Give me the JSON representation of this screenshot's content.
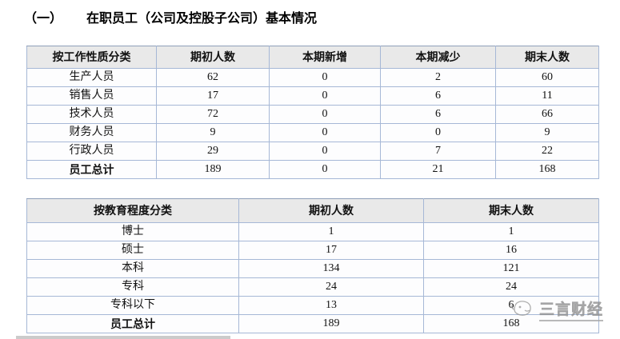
{
  "heading": {
    "number": "（一）",
    "title": "在职员工（公司及控股子公司）基本情况"
  },
  "job_table": {
    "headers": [
      "按工作性质分类",
      "期初人数",
      "本期新增",
      "本期减少",
      "期末人数"
    ],
    "rows": [
      {
        "label": "生产人员",
        "values": [
          "62",
          "0",
          "2",
          "60"
        ],
        "bold": false
      },
      {
        "label": "销售人员",
        "values": [
          "17",
          "0",
          "6",
          "11"
        ],
        "bold": false
      },
      {
        "label": "技术人员",
        "values": [
          "72",
          "0",
          "6",
          "66"
        ],
        "bold": false
      },
      {
        "label": "财务人员",
        "values": [
          "9",
          "0",
          "0",
          "9"
        ],
        "bold": false
      },
      {
        "label": "行政人员",
        "values": [
          "29",
          "0",
          "7",
          "22"
        ],
        "bold": false
      },
      {
        "label": "员工总计",
        "values": [
          "189",
          "0",
          "21",
          "168"
        ],
        "bold": true
      }
    ]
  },
  "education_table": {
    "headers": [
      "按教育程度分类",
      "期初人数",
      "期末人数"
    ],
    "rows": [
      {
        "label": "博士",
        "values": [
          "1",
          "1"
        ],
        "bold": false
      },
      {
        "label": "硕士",
        "values": [
          "17",
          "16"
        ],
        "bold": false
      },
      {
        "label": "本科",
        "values": [
          "134",
          "121"
        ],
        "bold": false
      },
      {
        "label": "专科",
        "values": [
          "24",
          "24"
        ],
        "bold": false
      },
      {
        "label": "专科以下",
        "values": [
          "13",
          "6"
        ],
        "bold": false
      },
      {
        "label": "员工总计",
        "values": [
          "189",
          "168"
        ],
        "bold": true
      }
    ]
  },
  "watermark": {
    "text": "三言财经",
    "logo": "sanyan-mascot-logo"
  },
  "colors": {
    "border_color": "#a6b8d6",
    "header_bg": "#e9e9e9",
    "text_color": "#111111",
    "watermark_color": "#9b9b9b",
    "edge_strip_color": "#cbcbcb"
  }
}
